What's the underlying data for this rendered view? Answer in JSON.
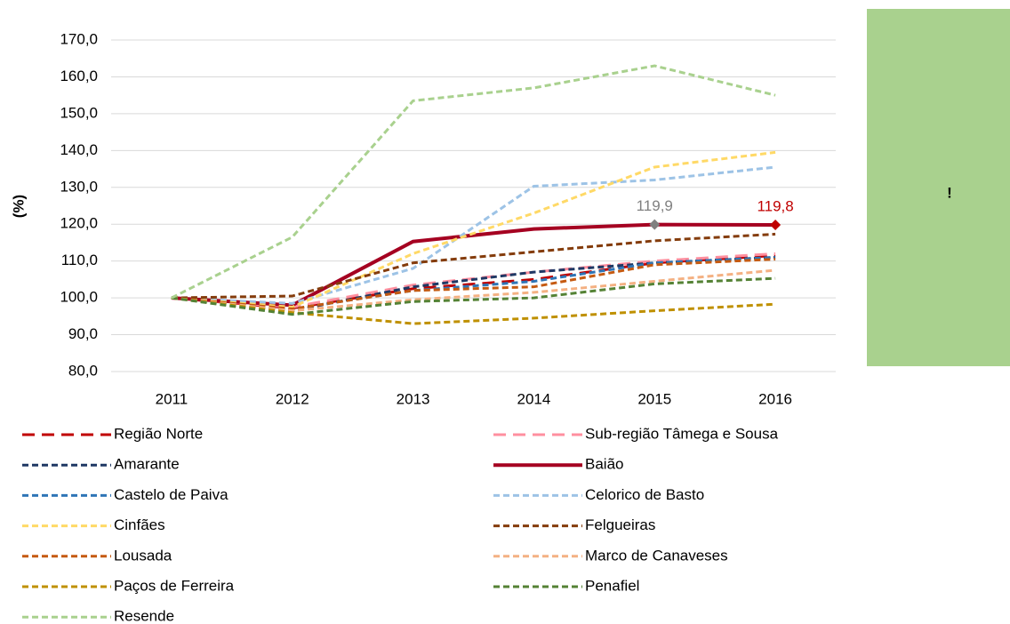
{
  "chart_data": {
    "type": "line",
    "y_label": "(%)",
    "categories": [
      "2011",
      "2012",
      "2013",
      "2014",
      "2015",
      "2016"
    ],
    "ylim": [
      80,
      170
    ],
    "yticks": [
      {
        "value": 80,
        "label": "80,0"
      },
      {
        "value": 90,
        "label": "90,0"
      },
      {
        "value": 100,
        "label": "100,0"
      },
      {
        "value": 110,
        "label": "110,0"
      },
      {
        "value": 120,
        "label": "120,0"
      },
      {
        "value": 130,
        "label": "130,0"
      },
      {
        "value": 140,
        "label": "140,0"
      },
      {
        "value": 150,
        "label": "150,0"
      },
      {
        "value": 160,
        "label": "160,0"
      },
      {
        "value": 170,
        "label": "170,0"
      }
    ],
    "grid": true,
    "series": [
      {
        "name": "Região Norte",
        "color": "#c00000",
        "dash": "long",
        "values": [
          100,
          97.2,
          102.5,
          105,
          109.5,
          111.5
        ]
      },
      {
        "name": "Sub-região Tâmega e Sousa",
        "color": "#ff8f9f",
        "dash": "long",
        "values": [
          100,
          97.5,
          103.5,
          107,
          110,
          112
        ]
      },
      {
        "name": "Amarante",
        "color": "#1f3864",
        "dash": "short",
        "values": [
          100,
          96.5,
          103,
          107,
          109.5,
          111
        ]
      },
      {
        "name": "Baião",
        "color": "#a50021",
        "dash": "solid",
        "values": [
          100,
          98,
          115.3,
          118.7,
          119.9,
          119.8
        ],
        "value_labels": [
          null,
          null,
          null,
          null,
          "119,9",
          "119,8"
        ],
        "value_label_colors": [
          null,
          null,
          null,
          null,
          "#808080",
          "#c00000"
        ]
      },
      {
        "name": "Castelo de Paiva",
        "color": "#2e75b6",
        "dash": "short",
        "values": [
          100,
          97,
          102,
          104.5,
          109.5,
          111
        ]
      },
      {
        "name": "Celorico de Basto",
        "color": "#9dc3e6",
        "dash": "short",
        "values": [
          100,
          98.5,
          108,
          130.3,
          132,
          135.5
        ]
      },
      {
        "name": "Cinfães",
        "color": "#ffd966",
        "dash": "short",
        "values": [
          100,
          97.5,
          112,
          123,
          135.5,
          139.5
        ]
      },
      {
        "name": "Felgueiras",
        "color": "#843c0c",
        "dash": "short",
        "values": [
          100,
          100.5,
          109.5,
          112.5,
          115.5,
          117.3
        ]
      },
      {
        "name": "Lousada",
        "color": "#c55a11",
        "dash": "short",
        "values": [
          100,
          97,
          102,
          103,
          109,
          110.5
        ]
      },
      {
        "name": "Marco de Canaveses",
        "color": "#f4b183",
        "dash": "short",
        "values": [
          100,
          96.5,
          99.5,
          101.5,
          104.5,
          107.5
        ]
      },
      {
        "name": "Paços de Ferreira",
        "color": "#bf9000",
        "dash": "short",
        "values": [
          100,
          96,
          93,
          94.5,
          96.5,
          98.3
        ]
      },
      {
        "name": "Penafiel",
        "color": "#548235",
        "dash": "short",
        "values": [
          100,
          95.5,
          99,
          100,
          103.8,
          105.3
        ]
      },
      {
        "name": "Resende",
        "color": "#a9d18e",
        "dash": "short",
        "values": [
          100,
          116.5,
          153.5,
          157,
          163,
          155
        ]
      }
    ]
  },
  "panel": {
    "text": "!"
  }
}
